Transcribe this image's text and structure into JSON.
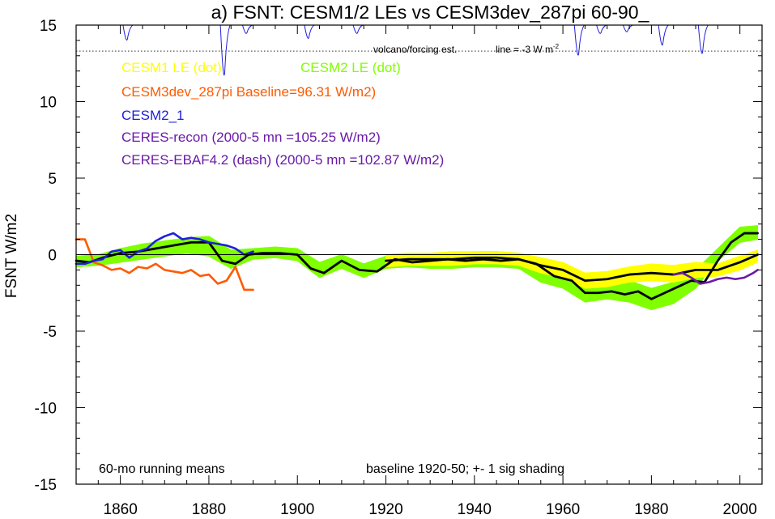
{
  "chart_data": {
    "type": "line",
    "title": "a) FSNT: CESM1/2 LEs vs CESM3dev_287pi 60-90_",
    "ylabel": "FSNT W/m2",
    "xlabel": "",
    "xlim": [
      1850,
      2005
    ],
    "ylim": [
      -15,
      15
    ],
    "xticks": [
      1860,
      1880,
      1900,
      1920,
      1940,
      1960,
      1980,
      2000
    ],
    "yticks": [
      15,
      10,
      5,
      0,
      -5,
      -10,
      -15
    ],
    "grid": false,
    "zero_line": 0,
    "legend": [
      {
        "label": "CESM1 LE (dot)",
        "color": "#ffff00"
      },
      {
        "label": "CESM2 LE (dot)",
        "color": "#80ff00"
      },
      {
        "label": "CESM3dev_287pi Baseline=96.31 W/m2)",
        "color": "#ff5a00"
      },
      {
        "label": "CESM2_1",
        "color": "#1e1edc"
      },
      {
        "label": "CERES-recon (2000-5 mn =105.25 W/m2)",
        "color": "#6a1aa8"
      },
      {
        "label": "CERES-EBAF4.2 (dash) (2000-5 mn =102.87 W/m2)",
        "color": "#6a1aa8"
      }
    ],
    "annotations": {
      "volcano_label": "volcano/forcing est.",
      "line_label": "line = -3 W m",
      "line_label_sup": "-2",
      "left_note": "60-mo running means",
      "right_note": "baseline 1920-50; +- 1 sig shading"
    },
    "volcano_reference_y": 13.3,
    "series": [
      {
        "name": "CESM2 LE (dot)",
        "kind": "band",
        "color": "#80ff00",
        "x": [
          1850,
          1855,
          1860,
          1865,
          1870,
          1875,
          1880,
          1885,
          1890,
          1895,
          1900,
          1905,
          1910,
          1915,
          1920,
          1925,
          1930,
          1935,
          1940,
          1945,
          1950,
          1955,
          1960,
          1965,
          1970,
          1975,
          1980,
          1985,
          1990,
          1995,
          2000,
          2004
        ],
        "lower": [
          -0.8,
          -0.7,
          -0.5,
          -0.3,
          -0.1,
          0.1,
          -0.1,
          -0.9,
          -0.3,
          -0.2,
          -0.4,
          -1.5,
          -0.9,
          -1.5,
          -0.9,
          -0.8,
          -0.9,
          -0.9,
          -0.8,
          -0.8,
          -0.9,
          -1.8,
          -2.2,
          -3.1,
          -2.9,
          -3.1,
          -3.6,
          -3.2,
          -2.2,
          -0.4,
          0.8,
          1.0
        ],
        "upper": [
          -0.1,
          0.0,
          0.4,
          0.7,
          0.9,
          1.1,
          1.2,
          0.3,
          0.4,
          0.5,
          0.4,
          -0.5,
          0.0,
          -0.6,
          -0.1,
          0.1,
          0.0,
          0.1,
          0.2,
          0.2,
          0.1,
          -0.6,
          -1.0,
          -1.8,
          -1.6,
          -1.7,
          -2.2,
          -1.8,
          -1.0,
          0.4,
          1.8,
          1.9
        ]
      },
      {
        "name": "CESM1 LE (dot)",
        "kind": "band",
        "color": "#ffff00",
        "x": [
          1920,
          1925,
          1930,
          1935,
          1940,
          1945,
          1950,
          1955,
          1960,
          1965,
          1970,
          1975,
          1980,
          1985,
          1990,
          1995,
          2000,
          2004
        ],
        "lower": [
          -0.8,
          -0.7,
          -0.7,
          -0.7,
          -0.6,
          -0.6,
          -0.7,
          -1.2,
          -1.5,
          -2.2,
          -2.1,
          -1.8,
          -1.7,
          -1.8,
          -1.5,
          -1.4,
          -1.0,
          -0.5
        ],
        "upper": [
          0.0,
          0.1,
          0.1,
          0.2,
          0.2,
          0.2,
          0.1,
          -0.2,
          -0.5,
          -1.2,
          -1.1,
          -0.8,
          -0.6,
          -0.7,
          -0.5,
          -0.6,
          -0.1,
          0.3
        ]
      },
      {
        "name": "CESM2 LE mean",
        "kind": "line",
        "color": "#000000",
        "x": [
          1850,
          1853,
          1856,
          1860,
          1864,
          1868,
          1872,
          1876,
          1880,
          1883,
          1886,
          1889,
          1892,
          1896,
          1900,
          1903,
          1906,
          1910,
          1914,
          1918,
          1922,
          1926,
          1930,
          1934,
          1938,
          1942,
          1946,
          1950,
          1954,
          1958,
          1962,
          1965,
          1968,
          1971,
          1974,
          1977,
          1980,
          1983,
          1986,
          1989,
          1992,
          1995,
          1998,
          2001,
          2004
        ],
        "y": [
          -0.4,
          -0.5,
          -0.2,
          0.1,
          0.2,
          0.4,
          0.6,
          0.8,
          0.8,
          -0.4,
          -0.6,
          0.0,
          0.1,
          0.1,
          0.0,
          -0.9,
          -1.2,
          -0.4,
          -1.0,
          -1.1,
          -0.3,
          -0.5,
          -0.4,
          -0.3,
          -0.4,
          -0.3,
          -0.4,
          -0.3,
          -0.6,
          -1.4,
          -1.7,
          -2.5,
          -2.5,
          -2.4,
          -2.6,
          -2.4,
          -2.9,
          -2.5,
          -2.1,
          -1.7,
          -1.8,
          -0.4,
          0.8,
          1.4,
          1.4
        ]
      },
      {
        "name": "CESM1 LE mean",
        "kind": "line",
        "color": "#000000",
        "x": [
          1920,
          1925,
          1930,
          1935,
          1940,
          1945,
          1950,
          1955,
          1960,
          1965,
          1970,
          1975,
          1980,
          1985,
          1990,
          1995,
          2000,
          2004
        ],
        "y": [
          -0.4,
          -0.3,
          -0.3,
          -0.3,
          -0.2,
          -0.2,
          -0.3,
          -0.7,
          -1.0,
          -1.7,
          -1.6,
          -1.3,
          -1.2,
          -1.3,
          -1.0,
          -1.0,
          -0.5,
          0.0
        ]
      },
      {
        "name": "CESM3dev_287pi Baseline=96.31 W/m2)",
        "kind": "line",
        "color": "#ff5a00",
        "x": [
          1850,
          1852,
          1854,
          1856,
          1858,
          1860,
          1862,
          1864,
          1866,
          1868,
          1870,
          1872,
          1874,
          1876,
          1878,
          1880,
          1882,
          1884,
          1886,
          1888,
          1890
        ],
        "y": [
          1.0,
          1.0,
          -0.5,
          -0.7,
          -1.0,
          -0.9,
          -1.2,
          -0.8,
          -0.9,
          -0.6,
          -1.0,
          -1.1,
          -1.2,
          -1.0,
          -1.4,
          -1.3,
          -1.9,
          -1.7,
          -0.8,
          -2.3,
          -2.3
        ]
      },
      {
        "name": "CESM2_1",
        "kind": "line",
        "color": "#1e1edc",
        "x": [
          1850,
          1852,
          1854,
          1856,
          1858,
          1860,
          1862,
          1864,
          1866,
          1868,
          1870,
          1872,
          1874,
          1876,
          1878,
          1880,
          1882,
          1884,
          1886,
          1888,
          1890
        ],
        "y": [
          -0.6,
          -0.6,
          -0.4,
          -0.3,
          0.2,
          0.3,
          -0.2,
          0.2,
          0.4,
          0.9,
          1.2,
          1.4,
          1.0,
          1.1,
          1.0,
          0.8,
          0.7,
          0.6,
          0.4,
          0.0,
          0.2
        ]
      },
      {
        "name": "CERES-recon (2000-5 mn =105.25 W/m2)",
        "kind": "line",
        "color": "#6a1aa8",
        "x": [
          1985,
          1987,
          1989,
          1991,
          1993,
          1995,
          1997,
          1999,
          2001,
          2003,
          2004
        ],
        "y": [
          -1.3,
          -1.2,
          -1.5,
          -1.9,
          -1.8,
          -1.6,
          -1.5,
          -1.6,
          -1.5,
          -1.2,
          -1.0
        ]
      },
      {
        "name": "volcano/forcing est.",
        "kind": "volcano",
        "color": "#1e1edc",
        "baseline": 15.0,
        "events": [
          {
            "x": 1861.5,
            "depth": 0.9
          },
          {
            "x": 1883.5,
            "depth": 3.0
          },
          {
            "x": 1888.5,
            "depth": 0.5
          },
          {
            "x": 1902.5,
            "depth": 0.8
          },
          {
            "x": 1913.5,
            "depth": 0.5
          },
          {
            "x": 1963.5,
            "depth": 1.8
          },
          {
            "x": 1968.5,
            "depth": 0.5
          },
          {
            "x": 1974.5,
            "depth": 0.4
          },
          {
            "x": 1982.5,
            "depth": 1.2
          },
          {
            "x": 1991.5,
            "depth": 1.7
          }
        ]
      }
    ]
  }
}
